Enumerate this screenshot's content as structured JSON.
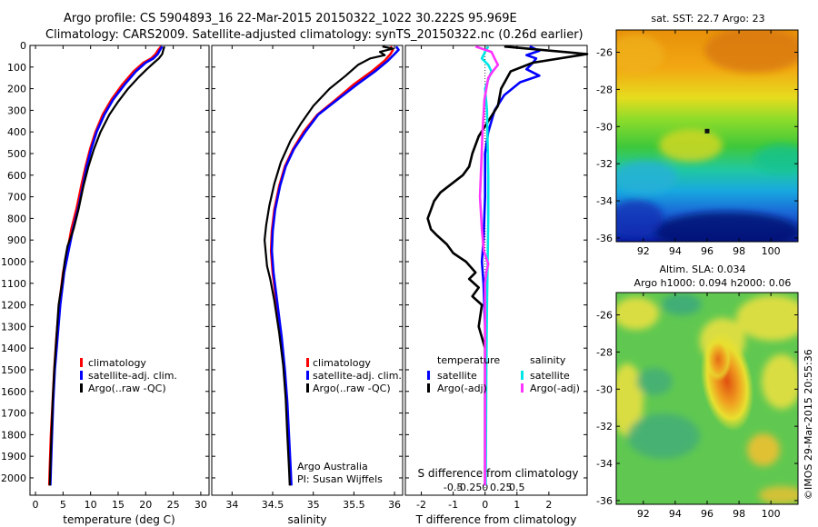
{
  "header": {
    "line1": "Argo profile: CS 5904893_16 22-Mar-2015 20150322_1022 30.222S 95.969E",
    "line2": "Climatology: CARS2009. Satellite-adjusted climatology: synTS_20150322.nc (0.26d earlier)"
  },
  "watermark": "©IMOS 29-Mar-2015 20:55:36",
  "credits": {
    "line1": "Argo Australia",
    "line2": "PI: Susan Wijffels"
  },
  "colors": {
    "climatology": "#ff0000",
    "satellite": "#0000ff",
    "argo": "#000000",
    "sal_sat": "#00e5e5",
    "sal_argo": "#ff33ff"
  },
  "chart_data": [
    {
      "type": "line",
      "name": "temperature-profile",
      "xlabel": "temperature (deg C)",
      "ylabel": "",
      "xlim": [
        -1,
        31.5
      ],
      "ylim": [
        2080,
        0
      ],
      "xticks": [
        0,
        5,
        10,
        15,
        20,
        25,
        30
      ],
      "yticks": [
        0,
        100,
        200,
        300,
        400,
        500,
        600,
        700,
        800,
        900,
        1000,
        1100,
        1200,
        1300,
        1400,
        1500,
        1600,
        1700,
        1800,
        1900,
        2000
      ],
      "legend": [
        "climatology",
        "satellite-adj. clim.",
        "Argo(..raw -QC)"
      ],
      "series": [
        {
          "name": "climatology",
          "color": "#ff0000",
          "points": [
            [
              22.8,
              5
            ],
            [
              22.3,
              20
            ],
            [
              21.8,
              40
            ],
            [
              21.0,
              60
            ],
            [
              19.6,
              80
            ],
            [
              17.8,
              120
            ],
            [
              15.8,
              180
            ],
            [
              13.8,
              250
            ],
            [
              12.2,
              320
            ],
            [
              10.9,
              400
            ],
            [
              9.9,
              480
            ],
            [
              9.1,
              560
            ],
            [
              8.3,
              650
            ],
            [
              7.5,
              750
            ],
            [
              6.5,
              850
            ],
            [
              5.8,
              950
            ],
            [
              5.0,
              1050
            ],
            [
              4.3,
              1200
            ],
            [
              3.8,
              1350
            ],
            [
              3.4,
              1500
            ],
            [
              3.1,
              1650
            ],
            [
              2.8,
              1800
            ],
            [
              2.6,
              1950
            ],
            [
              2.5,
              2035
            ]
          ]
        },
        {
          "name": "satellite-adj. clim.",
          "color": "#0000ff",
          "points": [
            [
              23.0,
              5
            ],
            [
              22.6,
              20
            ],
            [
              22.2,
              40
            ],
            [
              21.4,
              60
            ],
            [
              20.0,
              80
            ],
            [
              18.2,
              120
            ],
            [
              16.2,
              180
            ],
            [
              14.1,
              250
            ],
            [
              12.5,
              320
            ],
            [
              11.1,
              400
            ],
            [
              10.1,
              480
            ],
            [
              9.3,
              560
            ],
            [
              8.6,
              650
            ],
            [
              7.8,
              750
            ],
            [
              6.8,
              850
            ],
            [
              6.0,
              950
            ],
            [
              5.2,
              1050
            ],
            [
              4.5,
              1200
            ],
            [
              4.0,
              1350
            ],
            [
              3.5,
              1500
            ],
            [
              3.2,
              1650
            ],
            [
              3.0,
              1800
            ],
            [
              2.8,
              1950
            ],
            [
              2.7,
              2035
            ]
          ]
        },
        {
          "name": "Argo(..raw -QC)",
          "color": "#000000",
          "points": [
            [
              23.4,
              5
            ],
            [
              23.2,
              20
            ],
            [
              23.0,
              40
            ],
            [
              22.4,
              60
            ],
            [
              21.5,
              80
            ],
            [
              20.2,
              110
            ],
            [
              18.6,
              150
            ],
            [
              16.8,
              200
            ],
            [
              15.0,
              260
            ],
            [
              13.4,
              320
            ],
            [
              11.8,
              400
            ],
            [
              10.6,
              480
            ],
            [
              9.6,
              560
            ],
            [
              8.7,
              650
            ],
            [
              7.8,
              760
            ],
            [
              6.9,
              850
            ],
            [
              5.8,
              930
            ],
            [
              5.3,
              1000
            ],
            [
              4.8,
              1100
            ],
            [
              4.2,
              1200
            ],
            [
              3.8,
              1350
            ],
            [
              3.4,
              1500
            ],
            [
              3.1,
              1650
            ],
            [
              2.9,
              1800
            ],
            [
              2.7,
              1950
            ],
            [
              2.6,
              2035
            ]
          ]
        }
      ]
    },
    {
      "type": "line",
      "name": "salinity-profile",
      "xlabel": "salinity",
      "ylabel": "",
      "xlim": [
        33.75,
        36.1
      ],
      "ylim": [
        2080,
        0
      ],
      "xticks": [
        34,
        34.5,
        35,
        35.5,
        36
      ],
      "xtick_labels": [
        "34",
        "34.5",
        "35",
        "35.5",
        "36"
      ],
      "legend": [
        "climatology",
        "satellite-adj. clim.",
        "Argo(..raw -QC)"
      ],
      "series": [
        {
          "name": "climatology",
          "color": "#ff0000",
          "points": [
            [
              35.95,
              5
            ],
            [
              35.98,
              20
            ],
            [
              35.95,
              40
            ],
            [
              35.88,
              70
            ],
            [
              35.72,
              120
            ],
            [
              35.5,
              180
            ],
            [
              35.28,
              250
            ],
            [
              35.05,
              320
            ],
            [
              34.88,
              400
            ],
            [
              34.75,
              480
            ],
            [
              34.65,
              560
            ],
            [
              34.58,
              650
            ],
            [
              34.52,
              760
            ],
            [
              34.49,
              860
            ],
            [
              34.48,
              950
            ],
            [
              34.5,
              1050
            ],
            [
              34.55,
              1200
            ],
            [
              34.6,
              1350
            ],
            [
              34.64,
              1500
            ],
            [
              34.67,
              1650
            ],
            [
              34.69,
              1800
            ],
            [
              34.71,
              1950
            ],
            [
              34.72,
              2035
            ]
          ]
        },
        {
          "name": "satellite-adj. clim.",
          "color": "#0000ff",
          "points": [
            [
              36.02,
              5
            ],
            [
              36.05,
              20
            ],
            [
              36.0,
              40
            ],
            [
              35.92,
              70
            ],
            [
              35.76,
              120
            ],
            [
              35.54,
              180
            ],
            [
              35.3,
              250
            ],
            [
              35.06,
              320
            ],
            [
              34.9,
              400
            ],
            [
              34.76,
              480
            ],
            [
              34.66,
              560
            ],
            [
              34.59,
              650
            ],
            [
              34.53,
              760
            ],
            [
              34.5,
              860
            ],
            [
              34.49,
              950
            ],
            [
              34.51,
              1050
            ],
            [
              34.56,
              1200
            ],
            [
              34.61,
              1350
            ],
            [
              34.65,
              1500
            ],
            [
              34.68,
              1650
            ],
            [
              34.7,
              1800
            ],
            [
              34.72,
              1950
            ],
            [
              34.73,
              2035
            ]
          ]
        },
        {
          "name": "Argo(..raw -QC)",
          "color": "#000000",
          "points": [
            [
              35.85,
              5
            ],
            [
              35.98,
              15
            ],
            [
              35.82,
              30
            ],
            [
              35.88,
              45
            ],
            [
              35.7,
              60
            ],
            [
              35.55,
              90
            ],
            [
              35.4,
              140
            ],
            [
              35.2,
              200
            ],
            [
              35.0,
              280
            ],
            [
              34.85,
              360
            ],
            [
              34.72,
              440
            ],
            [
              34.6,
              540
            ],
            [
              34.52,
              640
            ],
            [
              34.46,
              740
            ],
            [
              34.42,
              830
            ],
            [
              34.4,
              900
            ],
            [
              34.42,
              980
            ],
            [
              34.43,
              1020
            ],
            [
              34.47,
              1080
            ],
            [
              34.52,
              1180
            ],
            [
              34.58,
              1330
            ],
            [
              34.63,
              1480
            ],
            [
              34.66,
              1630
            ],
            [
              34.68,
              1800
            ],
            [
              34.7,
              1950
            ],
            [
              34.71,
              2035
            ]
          ]
        }
      ]
    },
    {
      "type": "line",
      "name": "difference-profile",
      "xlabel": "T difference from climatology",
      "xlabel2": "S difference from climatology",
      "xlim": [
        -2.5,
        3.2
      ],
      "ylim": [
        2080,
        0
      ],
      "xticks": [
        -2,
        -1,
        0,
        1,
        2
      ],
      "xticks2": [
        -0.5,
        -0.25,
        0,
        0.25,
        0.5
      ],
      "xtick2_labels": [
        "-0.5",
        "-0.25",
        "0",
        "0.25",
        "0.5"
      ],
      "legend_temperature": {
        "title": "temperature",
        "items": [
          "satellite",
          "Argo(-adj)"
        ]
      },
      "legend_salinity": {
        "title": "salinity",
        "items": [
          "satellite",
          "Argo(-adj)"
        ]
      },
      "series": [
        {
          "name": "T satellite",
          "color": "#0000ff",
          "points": [
            [
              1.4,
              5
            ],
            [
              1.7,
              25
            ],
            [
              1.3,
              45
            ],
            [
              1.6,
              60
            ],
            [
              1.5,
              80
            ],
            [
              1.3,
              110
            ],
            [
              1.7,
              140
            ],
            [
              1.1,
              170
            ],
            [
              0.6,
              230
            ],
            [
              0.3,
              300
            ],
            [
              0.1,
              400
            ],
            [
              0.0,
              500
            ],
            [
              0.0,
              700
            ],
            [
              -0.05,
              900
            ],
            [
              -0.1,
              1000
            ],
            [
              -0.05,
              1100
            ],
            [
              0.0,
              1300
            ],
            [
              0.0,
              1600
            ],
            [
              0.0,
              2035
            ]
          ]
        },
        {
          "name": "T Argo(-adj)",
          "color": "#000000",
          "points": [
            [
              0.6,
              5
            ],
            [
              3.2,
              40
            ],
            [
              1.5,
              80
            ],
            [
              0.8,
              120
            ],
            [
              0.5,
              200
            ],
            [
              0.4,
              280
            ],
            [
              0.1,
              350
            ],
            [
              -0.2,
              420
            ],
            [
              -0.4,
              500
            ],
            [
              -0.5,
              560
            ],
            [
              -0.7,
              600
            ],
            [
              -1.4,
              680
            ],
            [
              -1.6,
              720
            ],
            [
              -1.7,
              760
            ],
            [
              -1.8,
              800
            ],
            [
              -1.7,
              850
            ],
            [
              -1.5,
              880
            ],
            [
              -1.2,
              920
            ],
            [
              -1.0,
              960
            ],
            [
              -0.6,
              1000
            ],
            [
              -0.3,
              1050
            ],
            [
              -0.5,
              1080
            ],
            [
              -0.2,
              1120
            ],
            [
              -0.4,
              1160
            ],
            [
              -0.1,
              1200
            ],
            [
              -0.2,
              1300
            ],
            [
              0.0,
              1400
            ],
            [
              0.0,
              1600
            ],
            [
              0.0,
              2035
            ]
          ]
        },
        {
          "name": "S satellite",
          "color": "#00e5e5",
          "points": [
            [
              0.05,
              5
            ],
            [
              0.0,
              30
            ],
            [
              -0.05,
              60
            ],
            [
              0.05,
              90
            ],
            [
              0.1,
              120
            ],
            [
              0.06,
              150
            ],
            [
              0.0,
              200
            ],
            [
              0.03,
              300
            ],
            [
              0.04,
              450
            ],
            [
              0.05,
              600
            ],
            [
              0.05,
              800
            ],
            [
              0.04,
              1000
            ],
            [
              0.03,
              1200
            ],
            [
              0.02,
              1500
            ],
            [
              0.01,
              2035
            ]
          ]
        },
        {
          "name": "S Argo(-adj)",
          "color": "#ff33ff",
          "points": [
            [
              -0.15,
              5
            ],
            [
              0.1,
              30
            ],
            [
              0.15,
              60
            ],
            [
              0.2,
              90
            ],
            [
              0.12,
              120
            ],
            [
              0.05,
              150
            ],
            [
              -0.01,
              250
            ],
            [
              -0.04,
              400
            ],
            [
              -0.06,
              550
            ],
            [
              -0.08,
              700
            ],
            [
              -0.05,
              850
            ],
            [
              -0.02,
              950
            ],
            [
              0.05,
              1010
            ],
            [
              0.02,
              1050
            ],
            [
              0.0,
              1100
            ],
            [
              0.0,
              1300
            ],
            [
              0.0,
              2035
            ]
          ]
        }
      ]
    },
    {
      "type": "heatmap",
      "name": "sst-map",
      "title": "sat. SST: 22.7  Argo: 23",
      "xticks": [
        92,
        94,
        96,
        98,
        100
      ],
      "yticks": [
        -26,
        -28,
        -30,
        -32,
        -34,
        -36
      ],
      "xlim": [
        90.3,
        101.7
      ],
      "ylim": [
        -36.2,
        -24.8
      ],
      "argo_location": [
        95.97,
        -30.22
      ]
    },
    {
      "type": "heatmap",
      "name": "sla-map",
      "title_line1": "Altim. SLA: 0.034",
      "title_line2": "Argo h1000: 0.094  h2000: 0.06",
      "xticks": [
        92,
        94,
        96,
        98,
        100
      ],
      "yticks": [
        -26,
        -28,
        -30,
        -32,
        -34,
        -36
      ],
      "xlim": [
        90.3,
        101.7
      ],
      "ylim": [
        -36.2,
        -24.8
      ]
    }
  ]
}
